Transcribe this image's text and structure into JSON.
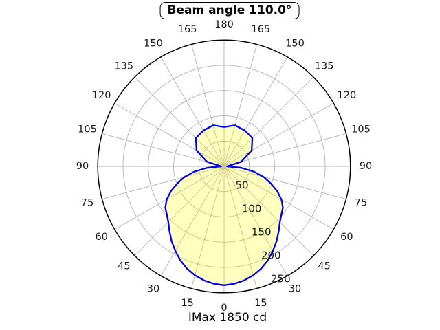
{
  "title": "Beam angle 110.0°",
  "caption": "IMax 1850 cd",
  "chart_data": {
    "type": "polar",
    "title": "Beam angle 110.0°",
    "caption": "IMax 1850 cd",
    "beam_angle_deg": 110.0,
    "imax_cd": 1850,
    "angle_unit": "deg",
    "angle_zero_position": "bottom",
    "angle_labels_deg": [
      0,
      15,
      30,
      45,
      60,
      75,
      90,
      105,
      120,
      135,
      150,
      165,
      180
    ],
    "radial_ticks": [
      50,
      100,
      150,
      200,
      250
    ],
    "r_max": 250,
    "rlabel_spoke_angle_deg": 22.5,
    "grid": true,
    "profile": {
      "description": "Luminous intensity vs angle from nadir (0 = straight down), symmetric left/right",
      "angles_deg": [
        0,
        5,
        10,
        15,
        20,
        25,
        30,
        35,
        40,
        45,
        50,
        55,
        60,
        65,
        70,
        75,
        80,
        85,
        90,
        105,
        120,
        135,
        150,
        165,
        180
      ],
      "values": [
        235,
        233,
        229,
        223,
        215,
        205,
        193,
        181,
        168,
        156,
        148,
        142,
        131,
        116,
        98,
        81,
        60,
        34,
        6,
        35,
        63,
        79,
        82,
        84,
        78
      ]
    },
    "colors": {
      "curve": "#0000ee",
      "fill": "#ffff00",
      "fill_opacity": 0.25,
      "grid": "#b3b3b3",
      "outer_ring": "#000000",
      "text": "#1a1a1a",
      "background": "#ffffff"
    }
  }
}
